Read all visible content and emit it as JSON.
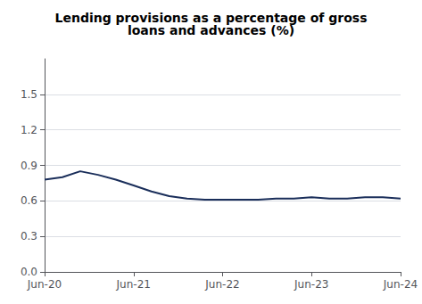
{
  "chart_data": {
    "type": "line",
    "title": "Lending provisions as a percentage of gross\nloans and advances (%)",
    "x": [
      0,
      1,
      2,
      3,
      4,
      5,
      6,
      7,
      8,
      9,
      10,
      11,
      12,
      13,
      14,
      15,
      16,
      17,
      18,
      19,
      20
    ],
    "values": [
      0.78,
      0.8,
      0.85,
      0.82,
      0.78,
      0.73,
      0.68,
      0.64,
      0.62,
      0.61,
      0.61,
      0.61,
      0.61,
      0.62,
      0.62,
      0.63,
      0.62,
      0.62,
      0.63,
      0.63,
      0.62
    ],
    "color": "#1a2e5a",
    "xlim": [
      0,
      20
    ],
    "xticks": [
      {
        "value": 0,
        "label": "Jun-20"
      },
      {
        "value": 5,
        "label": "Jun-21"
      },
      {
        "value": 10,
        "label": "Jun-22"
      },
      {
        "value": 15,
        "label": "Jun-23"
      },
      {
        "value": 20,
        "label": "Jun-24"
      }
    ],
    "ylim": [
      0.0,
      1.8
    ],
    "yticks": [
      {
        "value": 0,
        "label": "0.0"
      },
      0.3,
      0.6,
      0.9,
      1.2,
      1.5
    ],
    "grid": "y"
  }
}
